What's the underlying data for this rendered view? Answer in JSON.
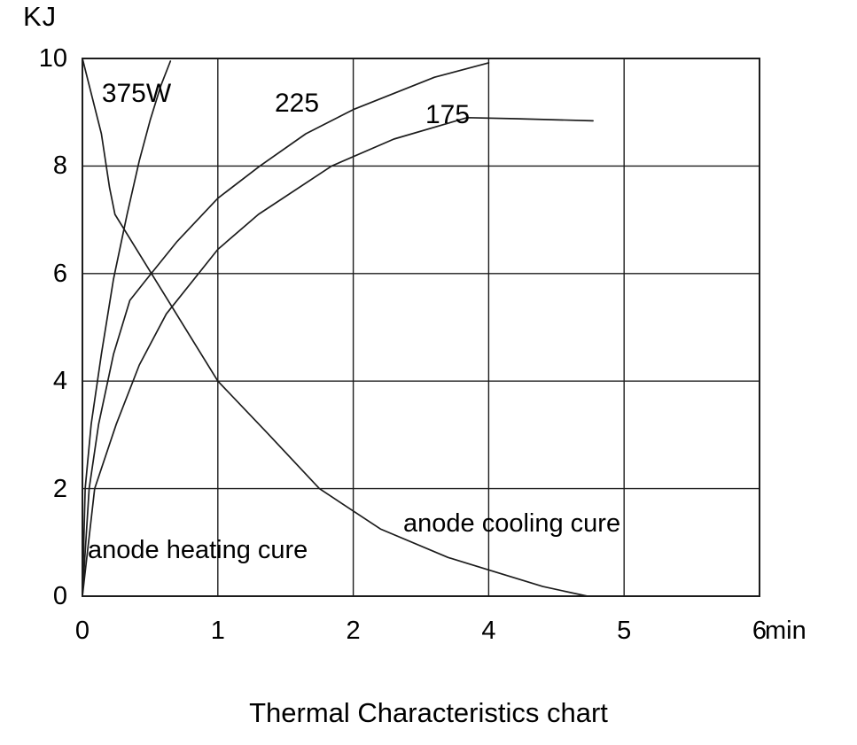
{
  "title": "Thermal Characteristics chart",
  "chart_data": {
    "type": "line",
    "title": "Thermal Characteristics chart",
    "grid": true,
    "background": "#ffffff",
    "line_color": "#1c1c1c",
    "y_axis": {
      "unit": "KJ",
      "range": [
        0,
        10
      ],
      "tick_values": [
        10,
        8,
        6,
        4,
        2,
        0
      ],
      "tick_labels": [
        "10",
        "8",
        "6",
        "4",
        "2",
        "0"
      ]
    },
    "x_axis": {
      "unit": "min",
      "gridline_positions": [
        0,
        1,
        2,
        3,
        4,
        5
      ],
      "tick_labels": [
        "0",
        "1",
        "2",
        "4",
        "5",
        "6"
      ]
    },
    "x_in_gridline_units": true,
    "series": [
      {
        "name": "heating-375W",
        "label": "375W",
        "group": "anode heating curve",
        "points": [
          [
            0,
            0
          ],
          [
            0.02,
            2.0
          ],
          [
            0.065,
            3.2
          ],
          [
            0.14,
            4.5
          ],
          [
            0.23,
            5.9
          ],
          [
            0.33,
            7.1
          ],
          [
            0.42,
            8.1
          ],
          [
            0.5,
            8.85
          ],
          [
            0.58,
            9.5
          ],
          [
            0.65,
            9.95
          ]
        ]
      },
      {
        "name": "heating-225",
        "label": "225",
        "group": "anode heating curve",
        "points": [
          [
            0,
            0
          ],
          [
            0.05,
            2.0
          ],
          [
            0.12,
            3.2
          ],
          [
            0.23,
            4.5
          ],
          [
            0.35,
            5.5
          ],
          [
            0.46,
            5.85
          ],
          [
            0.7,
            6.6
          ],
          [
            1.0,
            7.4
          ],
          [
            1.31,
            8.0
          ],
          [
            1.65,
            8.6
          ],
          [
            2.0,
            9.05
          ],
          [
            2.6,
            9.65
          ],
          [
            3.0,
            9.92
          ]
        ]
      },
      {
        "name": "heating-175",
        "label": "175",
        "group": "anode heating curve",
        "points": [
          [
            0,
            0
          ],
          [
            0.09,
            2.0
          ],
          [
            0.25,
            3.2
          ],
          [
            0.42,
            4.3
          ],
          [
            0.62,
            5.25
          ],
          [
            1.0,
            6.45
          ],
          [
            1.3,
            7.1
          ],
          [
            1.84,
            8.0
          ],
          [
            2.3,
            8.5
          ],
          [
            2.84,
            8.9
          ],
          [
            3.2,
            8.88
          ],
          [
            3.77,
            8.84
          ]
        ]
      },
      {
        "name": "cooling",
        "label": "anode cooling cure",
        "group": "anode cooling curve",
        "points": [
          [
            0,
            10
          ],
          [
            0.14,
            8.6
          ],
          [
            0.2,
            7.6
          ],
          [
            0.24,
            7.1
          ],
          [
            1.0,
            4.0
          ],
          [
            1.36,
            3.05
          ],
          [
            1.75,
            2.0
          ],
          [
            2.2,
            1.25
          ],
          [
            2.7,
            0.72
          ],
          [
            3.05,
            0.45
          ],
          [
            3.4,
            0.18
          ],
          [
            3.73,
            0.0
          ]
        ]
      }
    ],
    "annotations": [
      {
        "text": "anode heating cure"
      },
      {
        "text": "anode cooling cure"
      }
    ]
  }
}
